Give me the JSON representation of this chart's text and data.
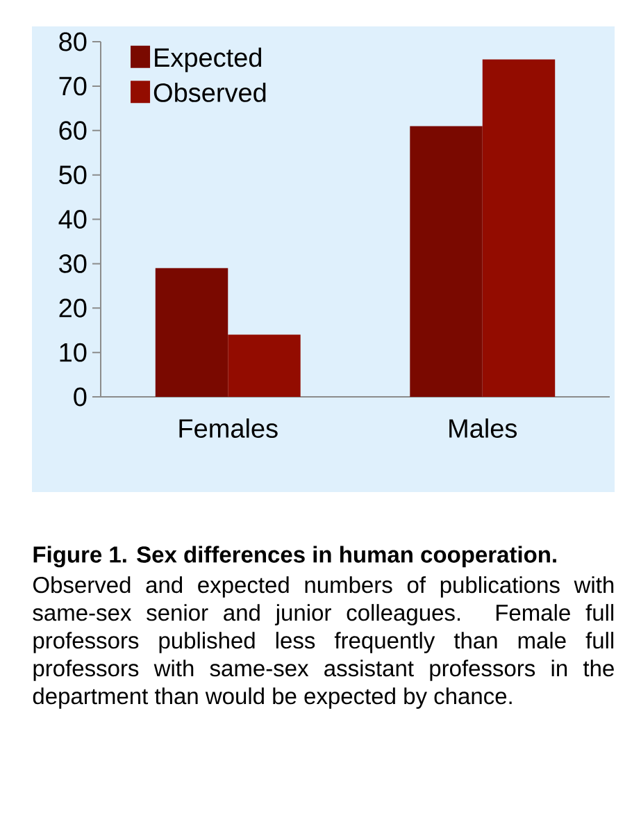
{
  "chart_data": {
    "type": "bar",
    "title": "Figure 1. Sex differences in human cooperation.",
    "annotations": [
      "Observed and expected numbers of publications with same-sex senior and junior colleagues. Female full professors published less frequently than male full professors with same-sex assistant professors in the department than would be expected by chance."
    ],
    "categories": [
      "Females",
      "Males"
    ],
    "series": [
      {
        "name": "Expected",
        "color": "#7a0900",
        "values": [
          29,
          61
        ]
      },
      {
        "name": "Observed",
        "color": "#930c00",
        "values": [
          14,
          76
        ]
      }
    ],
    "ylim": [
      0,
      80
    ],
    "yticks": [
      0,
      10,
      20,
      30,
      40,
      50,
      60,
      70,
      80
    ],
    "legend": "top left",
    "grid": false
  }
}
